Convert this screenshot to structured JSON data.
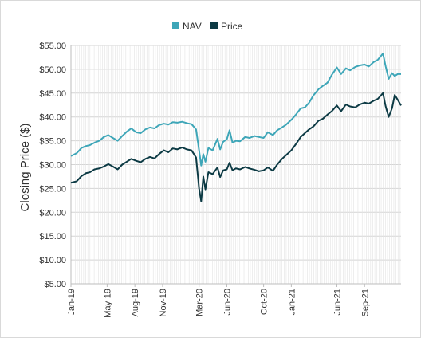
{
  "chart_data": {
    "type": "line",
    "title": "",
    "xlabel": "",
    "ylabel": "Closing Price ($)",
    "ylim": [
      5,
      55
    ],
    "y_ticks": [
      5,
      10,
      15,
      20,
      25,
      30,
      35,
      40,
      45,
      50,
      55
    ],
    "y_tick_labels": [
      "$5.00",
      "$10.00",
      "$15.00",
      "$20.00",
      "$25.00",
      "$30.00",
      "$35.00",
      "$40.00",
      "$45.00",
      "$50.00",
      "$55.00"
    ],
    "x_range": [
      "2019-01-01",
      "2021-12-31"
    ],
    "x_ticks": [
      "2019-01-01",
      "2019-05-01",
      "2019-08-01",
      "2019-11-01",
      "2020-03-01",
      "2020-06-01",
      "2020-10-01",
      "2021-01-01",
      "2021-06-01",
      "2021-09-01"
    ],
    "x_tick_labels": [
      "Jan-19",
      "May-19",
      "Aug-19",
      "Nov-19",
      "Mar-20",
      "Jun-20",
      "Oct-20",
      "Jan-21",
      "Jun-21",
      "Sep-21"
    ],
    "grid": true,
    "legend_position": "top-center",
    "series": [
      {
        "name": "NAV",
        "color": "#3ea6b8",
        "points": [
          [
            "2019-01-01",
            31.8
          ],
          [
            "2019-01-20",
            32.4
          ],
          [
            "2019-02-05",
            33.5
          ],
          [
            "2019-02-20",
            33.9
          ],
          [
            "2019-03-05",
            34.1
          ],
          [
            "2019-03-20",
            34.6
          ],
          [
            "2019-04-05",
            35.0
          ],
          [
            "2019-04-20",
            35.8
          ],
          [
            "2019-05-05",
            36.2
          ],
          [
            "2019-05-20",
            35.6
          ],
          [
            "2019-06-05",
            35.0
          ],
          [
            "2019-06-20",
            36.0
          ],
          [
            "2019-07-05",
            36.9
          ],
          [
            "2019-07-20",
            37.6
          ],
          [
            "2019-08-05",
            36.8
          ],
          [
            "2019-08-20",
            36.6
          ],
          [
            "2019-09-05",
            37.4
          ],
          [
            "2019-09-20",
            37.8
          ],
          [
            "2019-10-05",
            37.6
          ],
          [
            "2019-10-20",
            38.3
          ],
          [
            "2019-11-05",
            38.6
          ],
          [
            "2019-11-20",
            38.4
          ],
          [
            "2019-12-05",
            38.9
          ],
          [
            "2019-12-20",
            38.8
          ],
          [
            "2020-01-05",
            39.0
          ],
          [
            "2020-01-20",
            38.7
          ],
          [
            "2020-02-05",
            38.5
          ],
          [
            "2020-02-20",
            37.4
          ],
          [
            "2020-03-01",
            33.0
          ],
          [
            "2020-03-08",
            29.8
          ],
          [
            "2020-03-15",
            32.2
          ],
          [
            "2020-03-22",
            30.6
          ],
          [
            "2020-04-01",
            33.5
          ],
          [
            "2020-04-15",
            33.0
          ],
          [
            "2020-05-01",
            35.4
          ],
          [
            "2020-05-10",
            33.2
          ],
          [
            "2020-05-20",
            34.8
          ],
          [
            "2020-06-01",
            35.3
          ],
          [
            "2020-06-10",
            37.2
          ],
          [
            "2020-06-20",
            34.6
          ],
          [
            "2020-07-01",
            35.0
          ],
          [
            "2020-07-15",
            34.9
          ],
          [
            "2020-08-01",
            35.8
          ],
          [
            "2020-08-15",
            35.6
          ],
          [
            "2020-09-01",
            36.0
          ],
          [
            "2020-09-15",
            35.8
          ],
          [
            "2020-10-01",
            35.6
          ],
          [
            "2020-10-15",
            36.8
          ],
          [
            "2020-11-01",
            36.2
          ],
          [
            "2020-11-15",
            37.2
          ],
          [
            "2020-12-01",
            37.8
          ],
          [
            "2020-12-15",
            38.4
          ],
          [
            "2021-01-01",
            39.4
          ],
          [
            "2021-01-15",
            40.4
          ],
          [
            "2021-02-01",
            41.8
          ],
          [
            "2021-02-15",
            42.0
          ],
          [
            "2021-03-01",
            43.0
          ],
          [
            "2021-03-15",
            44.5
          ],
          [
            "2021-04-01",
            45.8
          ],
          [
            "2021-04-15",
            46.5
          ],
          [
            "2021-05-01",
            47.2
          ],
          [
            "2021-05-15",
            48.8
          ],
          [
            "2021-06-01",
            50.4
          ],
          [
            "2021-06-15",
            49.0
          ],
          [
            "2021-07-01",
            50.2
          ],
          [
            "2021-07-15",
            49.8
          ],
          [
            "2021-08-01",
            50.5
          ],
          [
            "2021-08-15",
            50.8
          ],
          [
            "2021-09-01",
            51.0
          ],
          [
            "2021-09-15",
            50.6
          ],
          [
            "2021-10-01",
            51.5
          ],
          [
            "2021-10-15",
            52.0
          ],
          [
            "2021-11-01",
            53.3
          ],
          [
            "2021-11-10",
            50.6
          ],
          [
            "2021-11-20",
            48.0
          ],
          [
            "2021-12-01",
            49.2
          ],
          [
            "2021-12-10",
            48.6
          ],
          [
            "2021-12-20",
            49.0
          ],
          [
            "2021-12-31",
            49.0
          ]
        ]
      },
      {
        "name": "Price",
        "color": "#0c3a44",
        "points": [
          [
            "2019-01-01",
            26.2
          ],
          [
            "2019-01-20",
            26.5
          ],
          [
            "2019-02-05",
            27.6
          ],
          [
            "2019-02-20",
            28.2
          ],
          [
            "2019-03-05",
            28.4
          ],
          [
            "2019-03-20",
            29.0
          ],
          [
            "2019-04-05",
            29.2
          ],
          [
            "2019-04-20",
            29.6
          ],
          [
            "2019-05-05",
            30.1
          ],
          [
            "2019-05-20",
            29.6
          ],
          [
            "2019-06-05",
            29.0
          ],
          [
            "2019-06-20",
            30.0
          ],
          [
            "2019-07-05",
            30.6
          ],
          [
            "2019-07-20",
            31.2
          ],
          [
            "2019-08-05",
            30.8
          ],
          [
            "2019-08-20",
            30.5
          ],
          [
            "2019-09-05",
            31.2
          ],
          [
            "2019-09-20",
            31.6
          ],
          [
            "2019-10-05",
            31.3
          ],
          [
            "2019-10-20",
            32.2
          ],
          [
            "2019-11-05",
            33.0
          ],
          [
            "2019-11-20",
            32.6
          ],
          [
            "2019-12-05",
            33.4
          ],
          [
            "2019-12-20",
            33.2
          ],
          [
            "2020-01-05",
            33.6
          ],
          [
            "2020-01-20",
            33.2
          ],
          [
            "2020-02-05",
            33.0
          ],
          [
            "2020-02-20",
            31.5
          ],
          [
            "2020-03-01",
            25.0
          ],
          [
            "2020-03-08",
            22.3
          ],
          [
            "2020-03-15",
            27.5
          ],
          [
            "2020-03-22",
            24.8
          ],
          [
            "2020-04-01",
            28.4
          ],
          [
            "2020-04-15",
            28.0
          ],
          [
            "2020-05-01",
            29.4
          ],
          [
            "2020-05-10",
            27.4
          ],
          [
            "2020-05-20",
            28.8
          ],
          [
            "2020-06-01",
            29.0
          ],
          [
            "2020-06-10",
            30.4
          ],
          [
            "2020-06-20",
            28.8
          ],
          [
            "2020-07-01",
            29.2
          ],
          [
            "2020-07-15",
            29.0
          ],
          [
            "2020-08-01",
            29.5
          ],
          [
            "2020-08-15",
            29.2
          ],
          [
            "2020-09-01",
            28.9
          ],
          [
            "2020-09-15",
            28.6
          ],
          [
            "2020-10-01",
            28.8
          ],
          [
            "2020-10-15",
            29.4
          ],
          [
            "2020-11-01",
            28.7
          ],
          [
            "2020-11-15",
            30.0
          ],
          [
            "2020-12-01",
            31.2
          ],
          [
            "2020-12-15",
            32.0
          ],
          [
            "2021-01-01",
            33.0
          ],
          [
            "2021-01-15",
            34.2
          ],
          [
            "2021-02-01",
            35.8
          ],
          [
            "2021-02-15",
            36.6
          ],
          [
            "2021-03-01",
            37.4
          ],
          [
            "2021-03-15",
            38.0
          ],
          [
            "2021-04-01",
            39.2
          ],
          [
            "2021-04-15",
            39.6
          ],
          [
            "2021-05-01",
            40.5
          ],
          [
            "2021-05-15",
            41.2
          ],
          [
            "2021-06-01",
            42.4
          ],
          [
            "2021-06-15",
            41.2
          ],
          [
            "2021-07-01",
            42.6
          ],
          [
            "2021-07-15",
            42.2
          ],
          [
            "2021-08-01",
            42.0
          ],
          [
            "2021-08-15",
            42.6
          ],
          [
            "2021-09-01",
            43.0
          ],
          [
            "2021-09-15",
            42.8
          ],
          [
            "2021-10-01",
            43.4
          ],
          [
            "2021-10-15",
            43.8
          ],
          [
            "2021-11-01",
            45.0
          ],
          [
            "2021-11-10",
            42.2
          ],
          [
            "2021-11-20",
            40.0
          ],
          [
            "2021-12-01",
            41.8
          ],
          [
            "2021-12-10",
            44.6
          ],
          [
            "2021-12-20",
            43.6
          ],
          [
            "2021-12-31",
            42.4
          ]
        ]
      }
    ]
  }
}
